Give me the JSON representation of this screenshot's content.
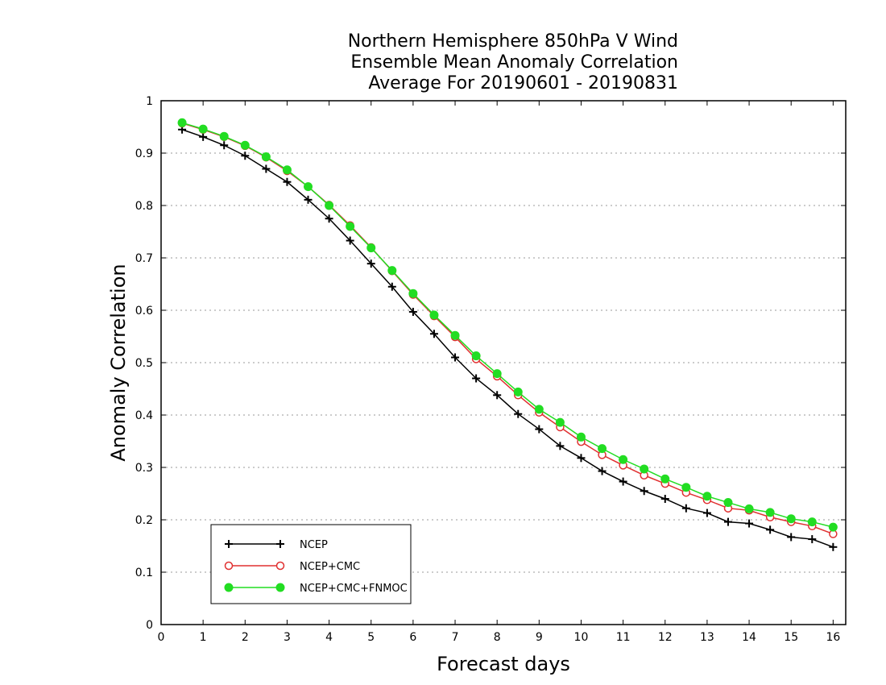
{
  "chart_data": {
    "type": "line",
    "title_lines": [
      "Northern Hemisphere 850hPa V Wind",
      "Ensemble Mean Anomaly Correlation",
      "Average For 20190601 - 20190831"
    ],
    "xlabel": "Forecast days",
    "ylabel": "Anomaly Correlation",
    "xlim": [
      0,
      16.3
    ],
    "ylim": [
      0,
      1
    ],
    "x_ticks": [
      "0",
      "1",
      "2",
      "3",
      "4",
      "5",
      "6",
      "7",
      "8",
      "9",
      "10",
      "11",
      "12",
      "13",
      "14",
      "15",
      "16"
    ],
    "y_ticks": [
      "0",
      "0.1",
      "0.2",
      "0.3",
      "0.4",
      "0.5",
      "0.6",
      "0.7",
      "0.8",
      "0.9",
      "1"
    ],
    "grid": "horizontal dotted",
    "legend_position": "bottom-left",
    "x": [
      0.5,
      1,
      1.5,
      2,
      2.5,
      3,
      3.5,
      4,
      4.5,
      5,
      5.5,
      6,
      6.5,
      7,
      7.5,
      8,
      8.5,
      9,
      9.5,
      10,
      10.5,
      11,
      11.5,
      12,
      12.5,
      13,
      13.5,
      14,
      14.5,
      15,
      15.5,
      16
    ],
    "series": [
      {
        "name": "NCEP",
        "color": "#000000",
        "marker": "plus",
        "values": [
          0.945,
          0.931,
          0.915,
          0.895,
          0.87,
          0.845,
          0.811,
          0.775,
          0.733,
          0.689,
          0.645,
          0.597,
          0.555,
          0.51,
          0.47,
          0.438,
          0.402,
          0.373,
          0.341,
          0.318,
          0.293,
          0.273,
          0.255,
          0.24,
          0.222,
          0.213,
          0.196,
          0.193,
          0.181,
          0.167,
          0.163,
          0.148
        ]
      },
      {
        "name": "NCEP+CMC",
        "color": "#e03030",
        "marker": "open-circle",
        "values": [
          0.957,
          0.945,
          0.931,
          0.914,
          0.892,
          0.866,
          0.836,
          0.801,
          0.762,
          0.72,
          0.675,
          0.63,
          0.589,
          0.549,
          0.507,
          0.474,
          0.438,
          0.405,
          0.377,
          0.349,
          0.324,
          0.304,
          0.285,
          0.269,
          0.252,
          0.238,
          0.222,
          0.218,
          0.205,
          0.196,
          0.188,
          0.173
        ]
      },
      {
        "name": "NCEP+CMC+FNMOC",
        "color": "#22dd22",
        "marker": "filled-circle",
        "values": [
          0.958,
          0.946,
          0.932,
          0.915,
          0.893,
          0.868,
          0.836,
          0.8,
          0.76,
          0.719,
          0.676,
          0.632,
          0.591,
          0.552,
          0.513,
          0.479,
          0.444,
          0.411,
          0.386,
          0.358,
          0.336,
          0.315,
          0.297,
          0.278,
          0.262,
          0.245,
          0.233,
          0.221,
          0.214,
          0.202,
          0.196,
          0.186
        ]
      }
    ]
  }
}
